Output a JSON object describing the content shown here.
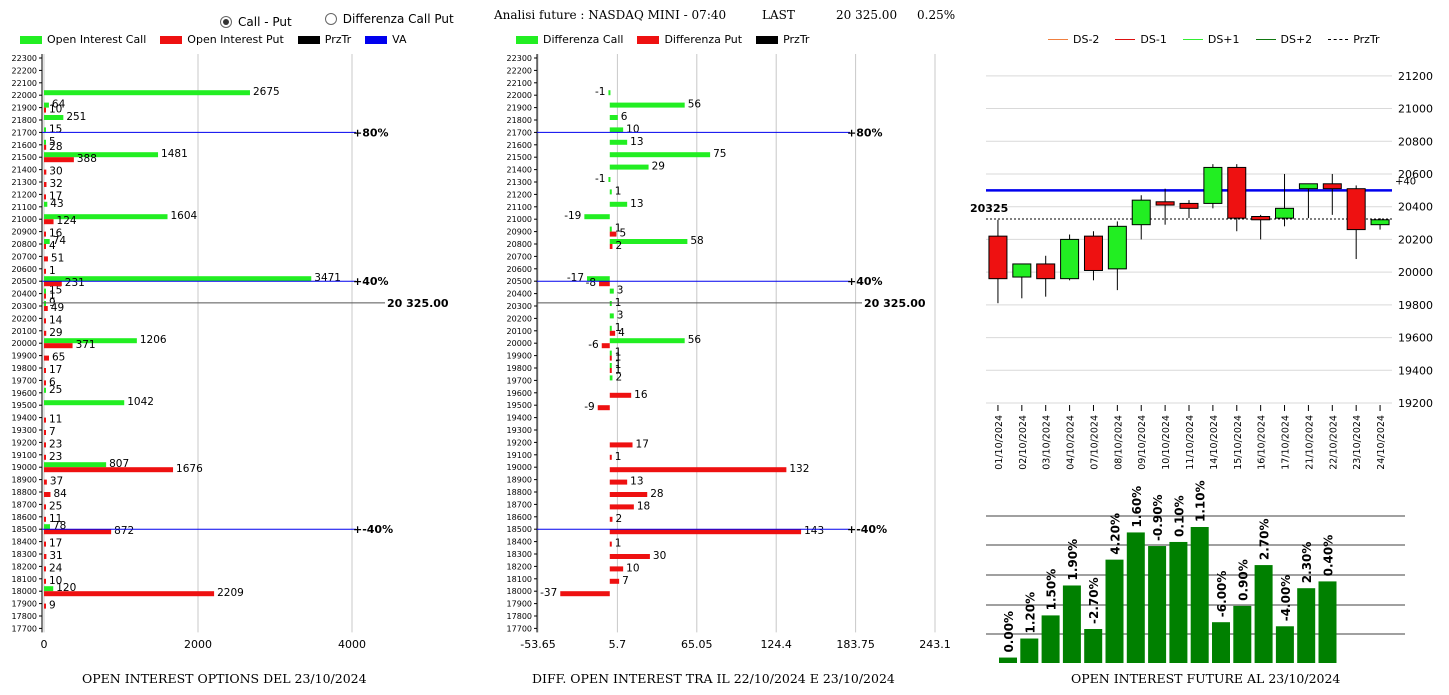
{
  "header": {
    "radio_call_put": "Call - Put",
    "radio_diff": "Differenza Call Put",
    "selected": "call_put",
    "title": "Analisi future : NASDAQ MINI - 07:40",
    "last_label": "LAST",
    "last_value": "20 325.00",
    "last_change": "0.25%"
  },
  "legend_left": [
    {
      "label": "Open Interest Call",
      "color": "#22ee22"
    },
    {
      "label": "Open Interest Put",
      "color": "#ee1111"
    },
    {
      "label": "PrzTr",
      "color": "#000000"
    },
    {
      "label": "VA",
      "color": "#0000ee"
    }
  ],
  "legend_mid": [
    {
      "label": "Differenza Call",
      "color": "#22ee22"
    },
    {
      "label": "Differenza Put",
      "color": "#ee1111"
    },
    {
      "label": "PrzTr",
      "color": "#000000"
    }
  ],
  "legend_right": [
    {
      "label": "DS-2",
      "color": "#f08040",
      "style": "solid"
    },
    {
      "label": "DS-1",
      "color": "#dd1111",
      "style": "solid"
    },
    {
      "label": "DS+1",
      "color": "#33ee33",
      "style": "solid"
    },
    {
      "label": "DS+2",
      "color": "#117711",
      "style": "solid"
    },
    {
      "label": "PrzTr",
      "color": "#000000",
      "style": "dashed"
    }
  ],
  "captions": {
    "left": "OPEN INTEREST OPTIONS DEL 23/10/2024",
    "mid": "DIFF. OPEN INTEREST TRA IL 22/10/2024 E 23/10/2024",
    "right": "OPEN INTEREST FUTURE AL 23/10/2024"
  },
  "colors": {
    "call": "#22ee22",
    "put": "#ee1111",
    "va": "#0000ee",
    "candle_up": "#22ee22",
    "candle_down": "#ee1111",
    "oi_bar": "#008000"
  },
  "chart_data": [
    {
      "type": "bar",
      "orientation": "horizontal",
      "strikes": [
        22300,
        22200,
        22100,
        22000,
        21900,
        21800,
        21700,
        21600,
        21500,
        21400,
        21300,
        21200,
        21100,
        21000,
        20900,
        20800,
        20700,
        20600,
        20500,
        20400,
        20300,
        20200,
        20100,
        20000,
        19900,
        19800,
        19700,
        19600,
        19500,
        19400,
        19300,
        19200,
        19100,
        19000,
        18900,
        18800,
        18700,
        18600,
        18500,
        18400,
        18300,
        18200,
        18100,
        18000,
        17900,
        17800,
        17700
      ],
      "series": [
        {
          "name": "Open Interest Call",
          "values": {
            "22000": 2675,
            "21900": 64,
            "21800": 251,
            "21700": 15,
            "21600": 5,
            "21500": 1481,
            "21100": 43,
            "21000": 1604,
            "20800": 74,
            "20500": 3471,
            "20400": 15,
            "20300": 9,
            "20000": 1206,
            "19600": 25,
            "19500": 1042,
            "19000": 807,
            "18500": 78,
            "18000": 120
          }
        },
        {
          "name": "Open Interest Put",
          "values": {
            "21900": 10,
            "21600": 28,
            "21500": 388,
            "21400": 30,
            "21300": 32,
            "21200": 17,
            "21000": 124,
            "20900": 16,
            "20800": 4,
            "20700": 51,
            "20600": 1,
            "20500": 231,
            "20400": 1,
            "20300": 49,
            "20200": 14,
            "20100": 29,
            "20000": 371,
            "19900": 65,
            "19800": 17,
            "19700": 6,
            "19400": 11,
            "19300": 7,
            "19200": 23,
            "19100": 23,
            "19000": 1676,
            "18900": 37,
            "18800": 84,
            "18700": 25,
            "18600": 11,
            "18500": 872,
            "18400": 17,
            "18300": 31,
            "18200": 24,
            "18100": 10,
            "18000": 2209,
            "17900": 9
          }
        }
      ],
      "xlim": [
        0,
        4000
      ],
      "x_ticks": [
        0,
        2000,
        4000
      ],
      "lines": [
        {
          "strike": 21700,
          "label": "80%"
        },
        {
          "strike": 20500,
          "label": "40%"
        },
        {
          "strike": 18500,
          "label": "-40%"
        }
      ],
      "przt": {
        "strike": 20325,
        "label": "20 325.00"
      }
    },
    {
      "type": "bar",
      "orientation": "horizontal",
      "strikes": [
        22300,
        22200,
        22100,
        22000,
        21900,
        21800,
        21700,
        21600,
        21500,
        21400,
        21300,
        21200,
        21100,
        21000,
        20900,
        20800,
        20700,
        20600,
        20500,
        20400,
        20300,
        20200,
        20100,
        20000,
        19900,
        19800,
        19700,
        19600,
        19500,
        19400,
        19300,
        19200,
        19100,
        19000,
        18900,
        18800,
        18700,
        18600,
        18500,
        18400,
        18300,
        18200,
        18100,
        18000,
        17900,
        17800,
        17700
      ],
      "series": [
        {
          "name": "Differenza Call",
          "values": {
            "22000": -1,
            "21900": 56,
            "21800": 6,
            "21700": 10,
            "21600": 13,
            "21500": 75,
            "21400": 29,
            "21300": -1,
            "21200": 1,
            "21100": 13,
            "21000": -19,
            "20900": 1,
            "20800": 58,
            "20500": -17,
            "20400": 3,
            "20300": 1,
            "20200": 3,
            "20100": 1,
            "20000": 56,
            "19900": 1,
            "19800": 1,
            "19700": 2
          }
        },
        {
          "name": "Differenza Put",
          "values": {
            "20900": 5,
            "20800": 2,
            "20500": -8,
            "20100": 4,
            "20000": -6,
            "19900": 1,
            "19800": 1,
            "19600": 16,
            "19500": -9,
            "19200": 17,
            "19100": 1,
            "19000": 132,
            "18900": 13,
            "18800": 28,
            "18700": 18,
            "18600": 2,
            "18500": 143,
            "18400": 1,
            "18300": 30,
            "18200": 10,
            "18100": 7,
            "18000": -37
          }
        }
      ],
      "xlim": [
        -53.65,
        243.1
      ],
      "x_ticks": [
        "-53.65",
        "5.7",
        "65.05",
        "124.4",
        "183.75",
        "243.1"
      ],
      "lines": [
        {
          "strike": 21700,
          "label": "80%"
        },
        {
          "strike": 20500,
          "label": "40%"
        },
        {
          "strike": 18500,
          "label": "-40%"
        }
      ],
      "przt": {
        "strike": 20325,
        "label": "20 325.00"
      }
    },
    {
      "type": "candlestick",
      "categories": [
        "01/10/2024",
        "02/10/2024",
        "03/10/2024",
        "04/10/2024",
        "07/10/2024",
        "08/10/2024",
        "09/10/2024",
        "10/10/2024",
        "11/10/2024",
        "14/10/2024",
        "15/10/2024",
        "16/10/2024",
        "17/10/2024",
        "21/10/2024",
        "22/10/2024",
        "23/10/2024",
        "24/10/2024"
      ],
      "ohlc": [
        [
          20220,
          20320,
          19810,
          19960
        ],
        [
          19970,
          20050,
          19840,
          20050
        ],
        [
          20050,
          20100,
          19850,
          19960
        ],
        [
          19960,
          20230,
          19950,
          20200
        ],
        [
          20220,
          20250,
          19950,
          20010
        ],
        [
          20020,
          20310,
          19890,
          20280
        ],
        [
          20290,
          20470,
          20200,
          20440
        ],
        [
          20430,
          20510,
          20290,
          20410
        ],
        [
          20420,
          20440,
          20330,
          20390
        ],
        [
          20420,
          20660,
          20390,
          20640
        ],
        [
          20640,
          20660,
          20250,
          20330
        ],
        [
          20340,
          20350,
          20200,
          20320
        ],
        [
          20330,
          20600,
          20280,
          20390
        ],
        [
          20510,
          20540,
          20330,
          20540
        ],
        [
          20540,
          20600,
          20350,
          20510
        ],
        [
          20510,
          20530,
          20080,
          20260
        ],
        [
          20290,
          20330,
          20260,
          20320
        ]
      ],
      "y_ticks": [
        19200,
        19400,
        19600,
        19800,
        20000,
        20200,
        20400,
        20600,
        20800,
        21000,
        21200
      ],
      "ylim": [
        19200,
        21260
      ],
      "przt_value": 20325,
      "przt_label": "20325",
      "va_line": 20500,
      "va_label": "+40"
    },
    {
      "type": "bar",
      "values": [
        0.0,
        1.2,
        1.5,
        1.9,
        -2.7,
        4.2,
        1.6,
        -0.9,
        0.1,
        1.1,
        -6.0,
        0.9,
        2.7,
        -4.0,
        2.3,
        0.4
      ],
      "labels": [
        "0.00%",
        "1.20%",
        "1.50%",
        "1.90%",
        "-2.70%",
        "4.20%",
        "1.60%",
        "-0.90%",
        "0.10%",
        "1.10%",
        "-6.00%",
        "0.90%",
        "2.70%",
        "-4.00%",
        "2.30%",
        "0.40%"
      ],
      "heights": [
        0.04,
        0.18,
        0.35,
        0.57,
        0.25,
        0.76,
        0.96,
        0.86,
        0.89,
        1.0,
        0.3,
        0.42,
        0.72,
        0.27,
        0.55,
        0.6
      ]
    }
  ]
}
